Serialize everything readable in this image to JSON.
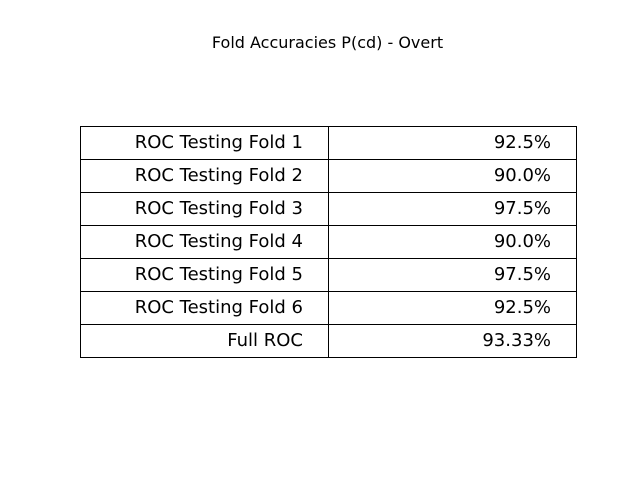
{
  "chart_data": {
    "type": "table",
    "title": "Fold Accuracies P(cd) - Overt",
    "rows": [
      {
        "label": "ROC Testing Fold 1",
        "value": "92.5%"
      },
      {
        "label": "ROC Testing Fold 2",
        "value": "90.0%"
      },
      {
        "label": "ROC Testing Fold 3",
        "value": "97.5%"
      },
      {
        "label": "ROC Testing Fold 4",
        "value": "90.0%"
      },
      {
        "label": "ROC Testing Fold 5",
        "value": "97.5%"
      },
      {
        "label": "ROC Testing Fold 6",
        "value": "92.5%"
      },
      {
        "label": "Full ROC",
        "value": "93.33%"
      }
    ],
    "grid": true,
    "colors": {
      "text": "#000000",
      "border": "#000000",
      "background": "#ffffff"
    }
  }
}
